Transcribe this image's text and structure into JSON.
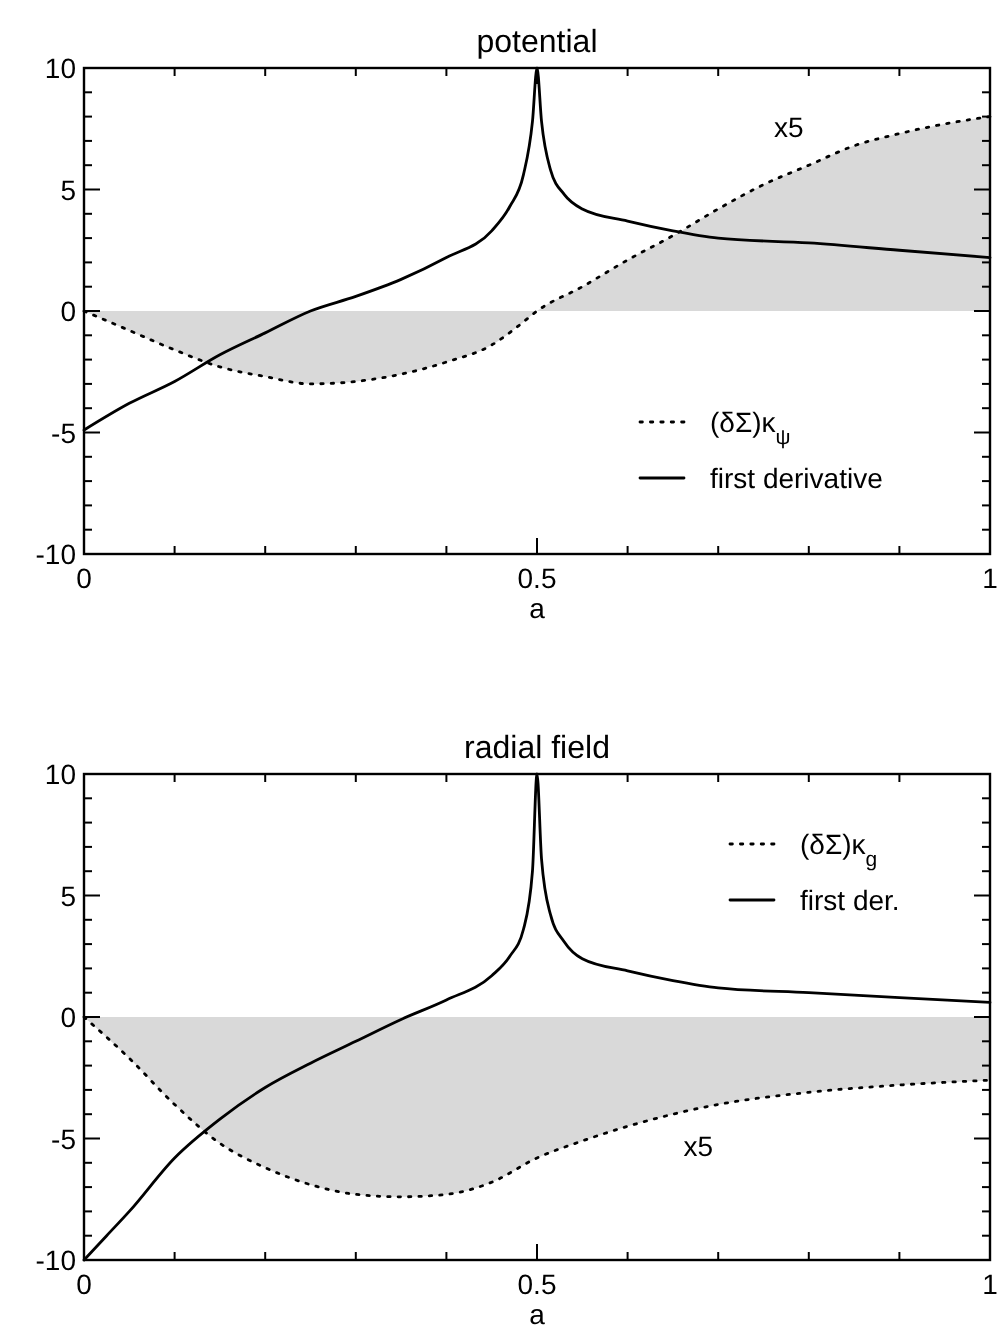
{
  "chart_data": [
    {
      "type": "line",
      "title": "potential",
      "xlabel": "a",
      "xlim": [
        0,
        1
      ],
      "ylim": [
        -10,
        10
      ],
      "xticks": [
        0,
        {
          "value": 0.1,
          "label": null
        },
        {
          "value": 0.2,
          "label": null
        },
        {
          "value": 0.3,
          "label": null
        },
        {
          "value": 0.4,
          "label": null
        },
        0.5,
        {
          "value": 0.6,
          "label": null
        },
        {
          "value": 0.7,
          "label": null
        },
        {
          "value": 0.8,
          "label": null
        },
        {
          "value": 0.9,
          "label": null
        },
        1
      ],
      "yticks": [
        -10,
        {
          "value": -9,
          "label": null
        },
        {
          "value": -8,
          "label": null
        },
        {
          "value": -7,
          "label": null
        },
        {
          "value": -6,
          "label": null
        },
        -5,
        {
          "value": -4,
          "label": null
        },
        {
          "value": -3,
          "label": null
        },
        {
          "value": -2,
          "label": null
        },
        {
          "value": -1,
          "label": null
        },
        0,
        {
          "value": 1,
          "label": null
        },
        {
          "value": 2,
          "label": null
        },
        {
          "value": 3,
          "label": null
        },
        {
          "value": 4,
          "label": null
        },
        5,
        {
          "value": 6,
          "label": null
        },
        {
          "value": 7,
          "label": null
        },
        {
          "value": 8,
          "label": null
        },
        {
          "value": 9,
          "label": null
        },
        10
      ],
      "legend": "bottom right",
      "grid": false,
      "series": [
        {
          "name": "(δΣ)κ$_{ψ}$",
          "type": "area",
          "line_style": "dotted",
          "color": "#000000",
          "x": [
            0,
            0.05,
            0.1,
            0.15,
            0.2,
            0.25,
            0.3,
            0.35,
            0.4,
            0.45,
            0.48,
            0.5,
            0.55,
            0.6,
            0.65,
            0.7,
            0.75,
            0.8,
            0.85,
            0.9,
            0.95,
            1
          ],
          "values": [
            0,
            -0.8,
            -1.6,
            -2.3,
            -2.7,
            -3.0,
            -2.9,
            -2.6,
            -2.1,
            -1.4,
            -0.6,
            0,
            1.0,
            2.1,
            3.1,
            4.2,
            5.2,
            6.0,
            6.8,
            7.3,
            7.7,
            8.0
          ]
        },
        {
          "name": "first derivative",
          "line_style": "solid",
          "color": "#000000",
          "x": [
            0,
            0.05,
            0.1,
            0.15,
            0.2,
            0.25,
            0.3,
            0.35,
            0.4,
            0.45,
            0.47,
            0.485,
            0.495,
            0.5,
            0.505,
            0.515,
            0.53,
            0.55,
            0.6,
            0.65,
            0.7,
            0.8,
            0.9,
            1
          ],
          "values": [
            -4.9,
            -3.8,
            -2.9,
            -1.8,
            -0.9,
            0,
            0.6,
            1.3,
            2.2,
            3.3,
            4.3,
            5.6,
            7.8,
            10,
            7.8,
            5.8,
            4.8,
            4.2,
            3.7,
            3.3,
            3.0,
            2.8,
            2.5,
            2.2
          ]
        }
      ],
      "annotations": [
        "x5"
      ]
    },
    {
      "type": "line",
      "title": "radial field",
      "xlabel": "a",
      "xlim": [
        0,
        1
      ],
      "ylim": [
        -10,
        10
      ],
      "xticks": [
        0,
        {
          "value": 0.1,
          "label": null
        },
        {
          "value": 0.2,
          "label": null
        },
        {
          "value": 0.3,
          "label": null
        },
        {
          "value": 0.4,
          "label": null
        },
        0.5,
        {
          "value": 0.6,
          "label": null
        },
        {
          "value": 0.7,
          "label": null
        },
        {
          "value": 0.8,
          "label": null
        },
        {
          "value": 0.9,
          "label": null
        },
        1
      ],
      "yticks": [
        -10,
        {
          "value": -9,
          "label": null
        },
        {
          "value": -8,
          "label": null
        },
        {
          "value": -7,
          "label": null
        },
        {
          "value": -6,
          "label": null
        },
        -5,
        {
          "value": -4,
          "label": null
        },
        {
          "value": -3,
          "label": null
        },
        {
          "value": -2,
          "label": null
        },
        {
          "value": -1,
          "label": null
        },
        0,
        {
          "value": 1,
          "label": null
        },
        {
          "value": 2,
          "label": null
        },
        {
          "value": 3,
          "label": null
        },
        {
          "value": 4,
          "label": null
        },
        5,
        {
          "value": 6,
          "label": null
        },
        {
          "value": 7,
          "label": null
        },
        {
          "value": 8,
          "label": null
        },
        {
          "value": 9,
          "label": null
        },
        10
      ],
      "legend": "top right",
      "grid": false,
      "series": [
        {
          "name": "(δΣ)κ$_{g}$",
          "type": "area",
          "line_style": "dotted",
          "color": "#000000",
          "x": [
            0,
            0.05,
            0.1,
            0.15,
            0.2,
            0.25,
            0.3,
            0.35,
            0.4,
            0.45,
            0.5,
            0.55,
            0.6,
            0.65,
            0.7,
            0.8,
            0.9,
            1
          ],
          "values": [
            0,
            -1.7,
            -3.6,
            -5.2,
            -6.2,
            -6.9,
            -7.3,
            -7.4,
            -7.3,
            -6.8,
            -5.8,
            -5.1,
            -4.5,
            -4.0,
            -3.6,
            -3.1,
            -2.8,
            -2.6
          ]
        },
        {
          "name": "first der.",
          "line_style": "solid",
          "color": "#000000",
          "x": [
            0,
            0.025,
            0.05,
            0.1,
            0.15,
            0.2,
            0.25,
            0.3,
            0.35,
            0.4,
            0.45,
            0.47,
            0.485,
            0.495,
            0.5,
            0.505,
            0.515,
            0.53,
            0.55,
            0.6,
            0.65,
            0.7,
            0.8,
            0.9,
            1
          ],
          "values": [
            -10,
            -9.0,
            -8.0,
            -5.8,
            -4.2,
            -2.9,
            -1.9,
            -1.0,
            -0.1,
            0.7,
            1.7,
            2.5,
            3.6,
            6.0,
            10,
            6.5,
            4.2,
            3.1,
            2.4,
            1.9,
            1.5,
            1.2,
            1.0,
            0.8,
            0.6
          ]
        }
      ],
      "annotations": [
        "x5"
      ]
    }
  ]
}
